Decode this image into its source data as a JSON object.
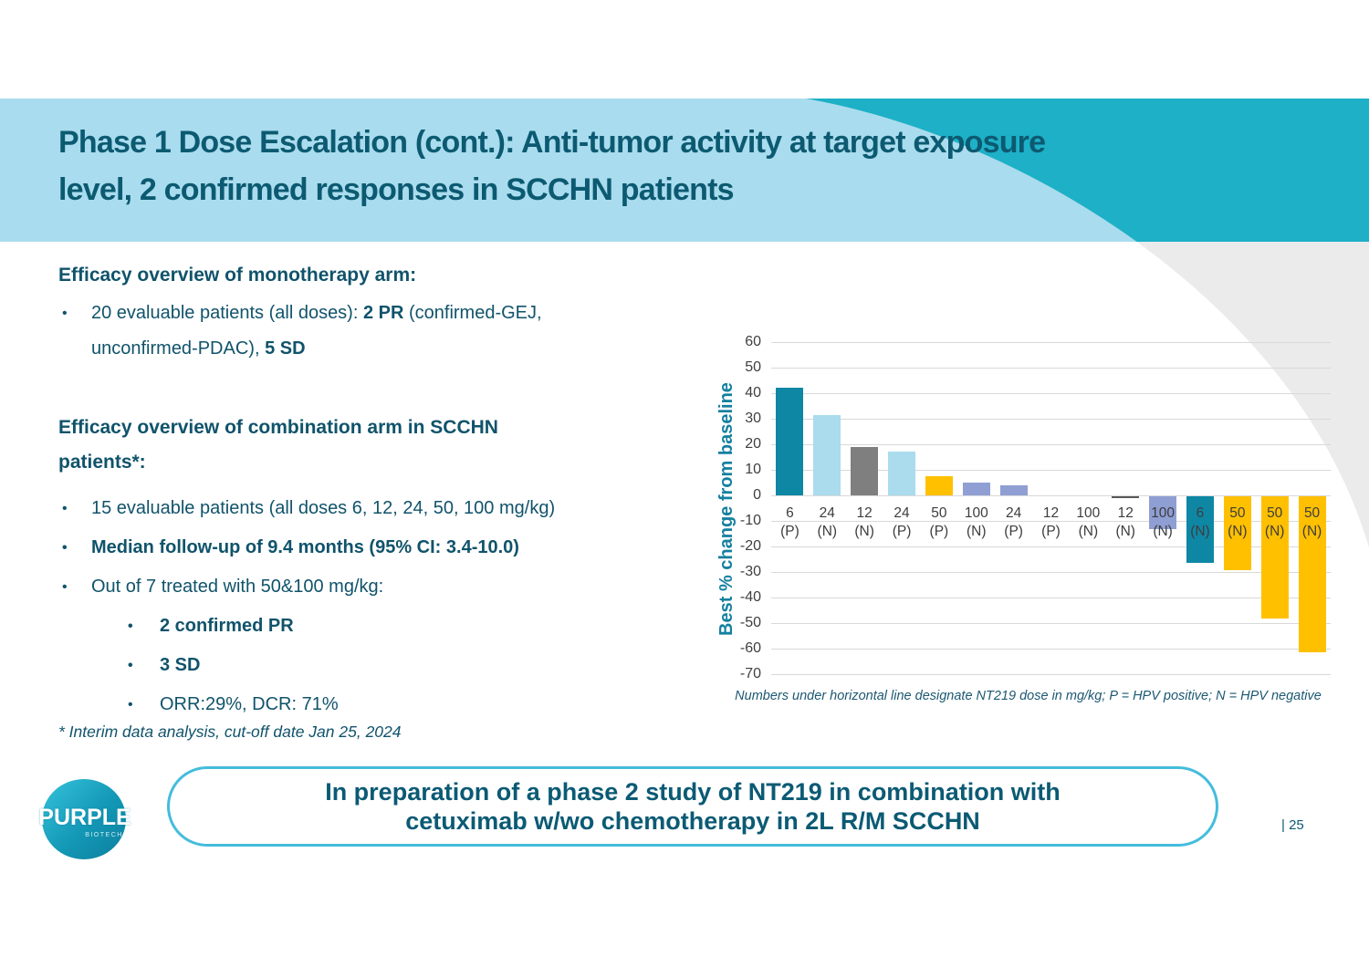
{
  "header": {
    "title_line1": "Phase 1 Dose Escalation (cont.): Anti-tumor activity at target exposure",
    "title_line2": "level, 2 confirmed responses in SCCHN patients"
  },
  "sections": {
    "mono": {
      "heading": "Efficacy overview of monotherapy arm:",
      "bullet1": {
        "line1_pre": "20 evaluable patients (all doses):  ",
        "line1_bold": "2 PR",
        "line1_post": " (confirmed-GEJ,",
        "line2_pre": "unconfirmed-PDAC), ",
        "line2_bold": "5 SD"
      }
    },
    "combo": {
      "heading_line1": "Efficacy overview of combination arm in SCCHN",
      "heading_line2": "patients*:",
      "bullets": [
        "15 evaluable patients (all doses 6, 12, 24, 50, 100 mg/kg)",
        "Median follow-up of 9.4 months (95% CI: 3.4-10.0)",
        "Out of 7 treated with 50&100 mg/kg:"
      ],
      "sub_bullets": [
        "2 confirmed PR",
        "3 SD",
        "ORR:29%, DCR: 71%"
      ]
    },
    "footnote": "* Interim data analysis, cut-off date Jan 25, 2024"
  },
  "chart_data": {
    "type": "bar",
    "title": "",
    "ylabel": "Best % change from baseline",
    "xlabel": "",
    "ylim": [
      -70,
      60
    ],
    "ytick_step": 10,
    "grid": true,
    "categories": [
      "6 (P)",
      "24 (N)",
      "12 (N)",
      "24 (P)",
      "50 (P)",
      "100 (N)",
      "24 (P)",
      "12 (P)",
      "100 (N)",
      "12 (N)",
      "100 (N)",
      "6 (N)",
      "50 (N)",
      "50 (N)",
      "50 (N)"
    ],
    "values": [
      42,
      31.5,
      19,
      17,
      7.5,
      5,
      4,
      0,
      0,
      -0.5,
      -13,
      -26,
      -29,
      -48,
      -61
    ],
    "bar_colors": [
      "#0e87a5",
      "#aadcee",
      "#7f7f7f",
      "#aadcee",
      "#ffc000",
      "#8f9ed3",
      "#8f9ed3",
      "#aadcee",
      "#aadcee",
      "#595959",
      "#8f9ed3",
      "#0e87a5",
      "#ffc000",
      "#ffc000",
      "#ffc000"
    ],
    "caption": "Numbers under horizontal line designate NT219 dose in mg/kg; P = HPV positive; N = HPV negative"
  },
  "callout": {
    "line1": "In preparation of a phase 2 study of NT219 in combination with",
    "line2": "cetuximab w/wo chemotherapy in 2L R/M SCCHN"
  },
  "footer": {
    "logo_text": "PURPLE",
    "logo_subtext": "BIOTECH",
    "page_number": "| 25"
  },
  "colors": {
    "band_light_blue": "#a9dcee",
    "band_teal": "#1db0c7",
    "decor_gray": "#ebebeb",
    "title_text": "#0c5a71",
    "body_text": "#10536b",
    "callout_border": "#44bcdc",
    "axis_text": "#3f3f3f",
    "ylabel_color": "#14809f"
  }
}
